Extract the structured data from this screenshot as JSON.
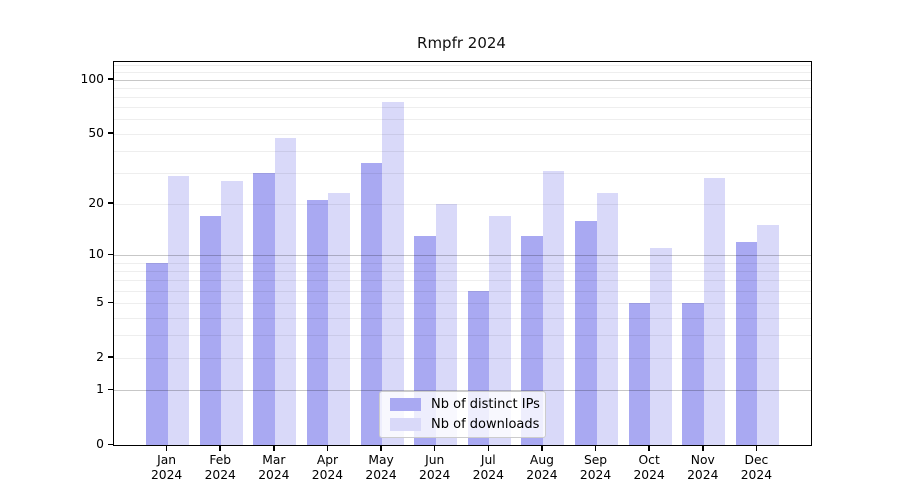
{
  "page": {
    "background": "#ffffff"
  },
  "chart_data": {
    "type": "bar",
    "title": "Rmpfr 2024",
    "categories": [
      "Jan",
      "Feb",
      "Mar",
      "Apr",
      "May",
      "Jun",
      "Jul",
      "Aug",
      "Sep",
      "Oct",
      "Nov",
      "Dec"
    ],
    "x_tick_year": "2024",
    "series": [
      {
        "name": "Nb of distinct IPs",
        "color": "#a9a9f2",
        "values": [
          9,
          17,
          30,
          21,
          34,
          13,
          6,
          13,
          16,
          5,
          5,
          12
        ]
      },
      {
        "name": "Nb of downloads",
        "color": "#d9d9f9",
        "values": [
          29,
          27,
          47,
          23,
          75,
          20,
          17,
          31,
          23,
          11,
          28,
          15
        ]
      }
    ],
    "y_scale": "log1p",
    "ylim": [
      0,
      125
    ],
    "y_ticks": [
      100,
      50,
      20,
      10,
      5,
      2,
      1,
      0
    ],
    "grid": {
      "major": [
        1,
        10,
        100
      ],
      "minor": [
        2,
        3,
        4,
        5,
        6,
        7,
        8,
        9,
        20,
        30,
        40,
        50,
        60,
        70,
        80,
        90,
        110,
        120
      ]
    },
    "legend": {
      "position": "lower-center"
    },
    "colors": {
      "spine": "#000000",
      "major_grid": "#c6c6c6",
      "minor_grid": "#eeeeee"
    }
  }
}
